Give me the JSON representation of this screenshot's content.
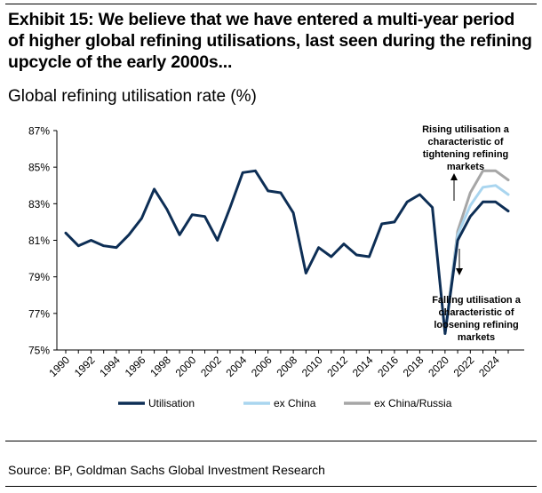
{
  "exhibit_title": "Exhibit 15: We believe that we have entered a multi-year period of higher global refining utilisations, last seen during the refining upcycle of the early 2000s...",
  "source": "Source: BP, Goldman Sachs Global Investment Research",
  "chart_data": {
    "type": "line",
    "title": "Global refining utilisation rate (%)",
    "xlabel": "",
    "ylabel": "",
    "xlim": [
      1990,
      2025
    ],
    "ylim": [
      75,
      87
    ],
    "grid": false,
    "yticks": [
      "75%",
      "77%",
      "79%",
      "81%",
      "83%",
      "85%",
      "87%"
    ],
    "xticks": [
      "1990",
      "1992",
      "1994",
      "1996",
      "1998",
      "2000",
      "2002",
      "2004",
      "2006",
      "2008",
      "2010",
      "2012",
      "2014",
      "2016",
      "2018",
      "2020",
      "2022",
      "2024"
    ],
    "legend_position": "bottom",
    "series": [
      {
        "name": "Utilisation",
        "color": "#0d2e55",
        "x": [
          1990,
          1991,
          1992,
          1993,
          1994,
          1995,
          1996,
          1997,
          1998,
          1999,
          2000,
          2001,
          2002,
          2003,
          2004,
          2005,
          2006,
          2007,
          2008,
          2009,
          2010,
          2011,
          2012,
          2013,
          2014,
          2015,
          2016,
          2017,
          2018,
          2019,
          2020,
          2021,
          2022,
          2023,
          2024,
          2025
        ],
        "values": [
          81.4,
          80.7,
          81.0,
          80.7,
          80.6,
          81.3,
          82.2,
          83.8,
          82.7,
          81.3,
          82.4,
          82.3,
          81.0,
          82.8,
          84.7,
          84.8,
          83.7,
          83.6,
          82.5,
          79.2,
          80.6,
          80.1,
          80.8,
          80.2,
          80.1,
          81.9,
          82.0,
          83.1,
          83.5,
          82.8,
          75.9,
          81.0,
          82.3,
          83.1,
          83.1,
          82.6
        ]
      },
      {
        "name": "ex China",
        "color": "#a9d5ef",
        "x": [
          2020,
          2021,
          2022,
          2023,
          2024,
          2025
        ],
        "values": [
          75.9,
          81.3,
          82.9,
          83.9,
          84.0,
          83.5
        ]
      },
      {
        "name": "ex China/Russia",
        "color": "#a6a6a6",
        "x": [
          2020,
          2021,
          2022,
          2023,
          2024,
          2025
        ],
        "values": [
          75.9,
          81.5,
          83.6,
          84.8,
          84.8,
          84.3
        ]
      }
    ],
    "annotations": [
      {
        "id": "rising",
        "text": [
          "Rising utilisation a",
          "characteristic of",
          "tightening refining",
          "markets"
        ],
        "arrow": "up"
      },
      {
        "id": "falling",
        "text": [
          "Falling utilisation a",
          "characteristic of",
          "loosening refining",
          "markets"
        ],
        "arrow": "down"
      }
    ]
  }
}
